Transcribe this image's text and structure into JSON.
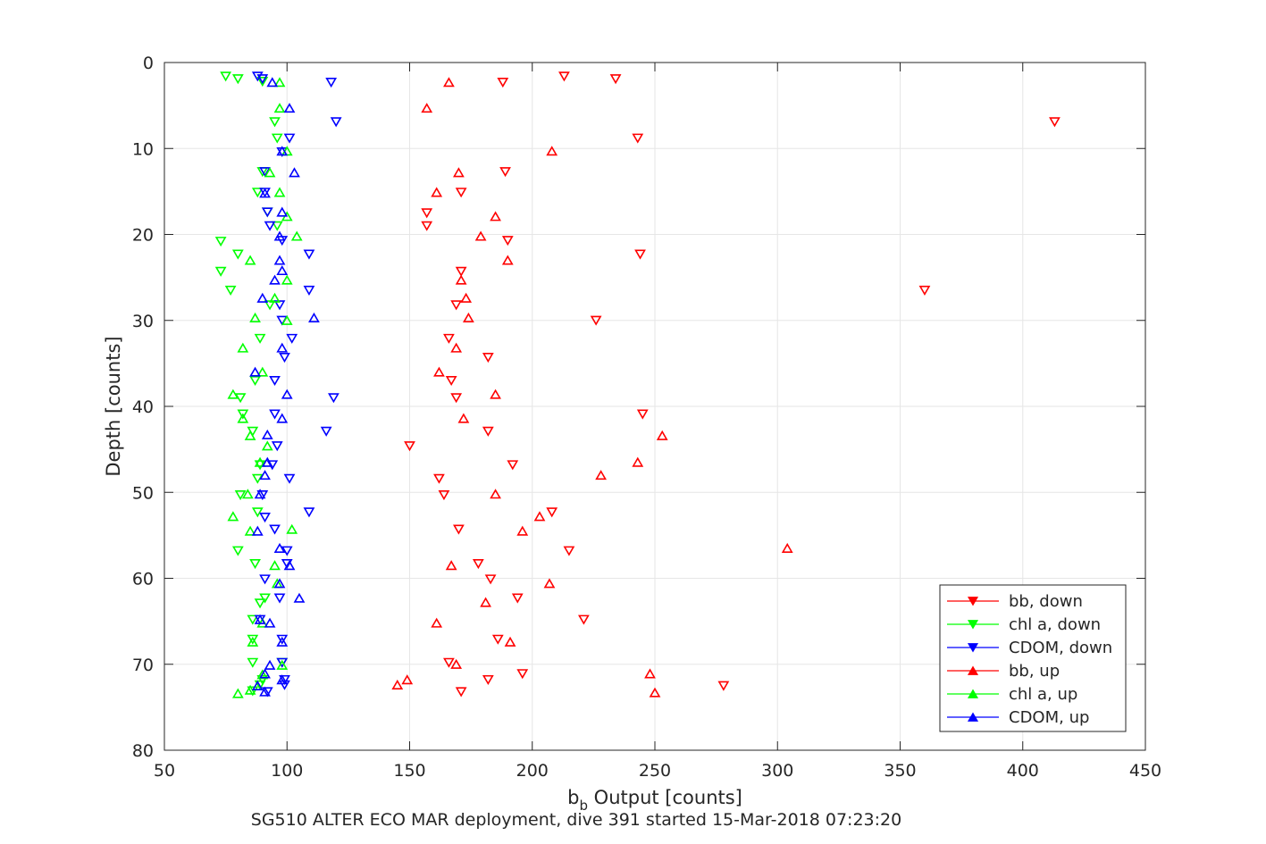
{
  "chart_data": {
    "type": "scatter",
    "xlabel_main": "b",
    "xlabel_sub": "b",
    "xlabel_rest": " Output [counts]",
    "ylabel": "Depth [counts]",
    "caption": "SG510 ALTER ECO MAR deployment, dive 391 started 15-Mar-2018 07:23:20",
    "xlim": [
      50,
      450
    ],
    "ylim": [
      0,
      80
    ],
    "y_reversed": true,
    "grid": true,
    "legend_position": "bottom-right",
    "x_ticks": [
      50,
      100,
      150,
      200,
      250,
      300,
      350,
      400,
      450
    ],
    "y_ticks": [
      0,
      10,
      20,
      30,
      40,
      50,
      60,
      70,
      80
    ],
    "series": [
      {
        "name": "bb, down",
        "color": "#ff0000",
        "marker": "triangle-down",
        "points": [
          [
            213,
            1.6
          ],
          [
            234,
            1.9
          ],
          [
            188,
            2.3
          ],
          [
            413,
            6.9
          ],
          [
            243,
            8.8
          ],
          [
            189,
            12.7
          ],
          [
            171,
            15.1
          ],
          [
            157,
            17.5
          ],
          [
            157,
            19.0
          ],
          [
            190,
            20.7
          ],
          [
            244,
            22.3
          ],
          [
            171,
            24.3
          ],
          [
            360,
            26.5
          ],
          [
            169,
            28.2
          ],
          [
            226,
            30.0
          ],
          [
            166,
            32.1
          ],
          [
            182,
            34.3
          ],
          [
            167,
            37.0
          ],
          [
            169,
            39.0
          ],
          [
            245,
            40.9
          ],
          [
            182,
            42.9
          ],
          [
            150,
            44.6
          ],
          [
            192,
            46.8
          ],
          [
            162,
            48.4
          ],
          [
            164,
            50.3
          ],
          [
            208,
            52.3
          ],
          [
            170,
            54.3
          ],
          [
            215,
            56.8
          ],
          [
            178,
            58.3
          ],
          [
            183,
            60.1
          ],
          [
            194,
            62.3
          ],
          [
            221,
            64.8
          ],
          [
            186,
            67.1
          ],
          [
            166,
            69.8
          ],
          [
            196,
            71.1
          ],
          [
            182,
            71.8
          ],
          [
            278,
            72.5
          ],
          [
            171,
            73.2
          ]
        ]
      },
      {
        "name": "chl a, down",
        "color": "#00ff00",
        "marker": "triangle-down",
        "points": [
          [
            75,
            1.6
          ],
          [
            80,
            1.9
          ],
          [
            90,
            2.2
          ],
          [
            95,
            6.9
          ],
          [
            96,
            8.8
          ],
          [
            90,
            12.7
          ],
          [
            88,
            15.1
          ],
          [
            92,
            17.4
          ],
          [
            96,
            19.0
          ],
          [
            73,
            20.8
          ],
          [
            80,
            22.3
          ],
          [
            73,
            24.3
          ],
          [
            77,
            26.5
          ],
          [
            93,
            28.2
          ],
          [
            89,
            32.1
          ],
          [
            87,
            37.0
          ],
          [
            81,
            39.0
          ],
          [
            82,
            40.9
          ],
          [
            86,
            42.9
          ],
          [
            89,
            46.8
          ],
          [
            88,
            48.4
          ],
          [
            81,
            50.3
          ],
          [
            88,
            52.3
          ],
          [
            80,
            56.8
          ],
          [
            87,
            58.3
          ],
          [
            91,
            62.3
          ],
          [
            89,
            62.9
          ],
          [
            86,
            64.8
          ],
          [
            86,
            67.1
          ],
          [
            86,
            69.8
          ],
          [
            98,
            69.8
          ],
          [
            90,
            71.8
          ],
          [
            89,
            72.4
          ],
          [
            86,
            73.1
          ]
        ]
      },
      {
        "name": "CDOM, down",
        "color": "#0000ff",
        "marker": "triangle-down",
        "points": [
          [
            88,
            1.6
          ],
          [
            90,
            1.9
          ],
          [
            118,
            2.3
          ],
          [
            120,
            6.9
          ],
          [
            101,
            8.8
          ],
          [
            98,
            10.4
          ],
          [
            91,
            12.7
          ],
          [
            91,
            15.1
          ],
          [
            92,
            17.4
          ],
          [
            93,
            19.0
          ],
          [
            98,
            20.7
          ],
          [
            109,
            22.3
          ],
          [
            109,
            26.5
          ],
          [
            97,
            28.2
          ],
          [
            98,
            30.0
          ],
          [
            102,
            32.1
          ],
          [
            99,
            34.3
          ],
          [
            95,
            37.0
          ],
          [
            119,
            39.0
          ],
          [
            95,
            40.9
          ],
          [
            116,
            42.9
          ],
          [
            96,
            44.6
          ],
          [
            94,
            46.8
          ],
          [
            101,
            48.4
          ],
          [
            90,
            50.3
          ],
          [
            109,
            52.3
          ],
          [
            91,
            52.9
          ],
          [
            95,
            54.3
          ],
          [
            100,
            56.8
          ],
          [
            100,
            58.3
          ],
          [
            91,
            60.1
          ],
          [
            97,
            62.3
          ],
          [
            89,
            64.8
          ],
          [
            98,
            67.1
          ],
          [
            98,
            69.8
          ],
          [
            99,
            71.8
          ],
          [
            99,
            72.4
          ],
          [
            92,
            73.2
          ]
        ]
      },
      {
        "name": "bb, up",
        "color": "#ff0000",
        "marker": "triangle-up",
        "points": [
          [
            166,
            2.3
          ],
          [
            157,
            5.3
          ],
          [
            208,
            10.3
          ],
          [
            170,
            12.8
          ],
          [
            161,
            15.1
          ],
          [
            185,
            17.9
          ],
          [
            179,
            20.2
          ],
          [
            190,
            23.0
          ],
          [
            171,
            25.3
          ],
          [
            173,
            27.4
          ],
          [
            174,
            29.7
          ],
          [
            169,
            33.2
          ],
          [
            162,
            36.0
          ],
          [
            185,
            38.6
          ],
          [
            172,
            41.4
          ],
          [
            253,
            43.4
          ],
          [
            243,
            46.5
          ],
          [
            228,
            48.0
          ],
          [
            185,
            50.2
          ],
          [
            203,
            52.8
          ],
          [
            196,
            54.5
          ],
          [
            304,
            56.5
          ],
          [
            167,
            58.5
          ],
          [
            207,
            60.6
          ],
          [
            181,
            62.8
          ],
          [
            161,
            65.2
          ],
          [
            191,
            67.4
          ],
          [
            169,
            70.0
          ],
          [
            248,
            71.1
          ],
          [
            149,
            71.8
          ],
          [
            145,
            72.4
          ],
          [
            250,
            73.3
          ]
        ]
      },
      {
        "name": "chl a, up",
        "color": "#00ff00",
        "marker": "triangle-up",
        "points": [
          [
            97,
            2.3
          ],
          [
            97,
            5.3
          ],
          [
            100,
            10.3
          ],
          [
            93,
            12.8
          ],
          [
            97,
            15.1
          ],
          [
            100,
            17.9
          ],
          [
            104,
            20.2
          ],
          [
            85,
            23.0
          ],
          [
            100,
            25.3
          ],
          [
            95,
            27.4
          ],
          [
            87,
            29.7
          ],
          [
            100,
            30.0
          ],
          [
            82,
            33.2
          ],
          [
            90,
            36.0
          ],
          [
            78,
            38.6
          ],
          [
            82,
            41.4
          ],
          [
            85,
            43.4
          ],
          [
            92,
            44.6
          ],
          [
            89,
            46.5
          ],
          [
            84,
            50.2
          ],
          [
            78,
            52.8
          ],
          [
            102,
            54.3
          ],
          [
            85,
            54.5
          ],
          [
            95,
            58.5
          ],
          [
            96,
            60.6
          ],
          [
            90,
            65.2
          ],
          [
            86,
            67.4
          ],
          [
            98,
            70.1
          ],
          [
            90,
            71.2
          ],
          [
            85,
            73.0
          ],
          [
            80,
            73.4
          ]
        ]
      },
      {
        "name": "CDOM, up",
        "color": "#0000ff",
        "marker": "triangle-up",
        "points": [
          [
            94,
            2.3
          ],
          [
            101,
            5.3
          ],
          [
            98,
            10.3
          ],
          [
            103,
            12.8
          ],
          [
            91,
            15.2
          ],
          [
            98,
            17.4
          ],
          [
            97,
            20.2
          ],
          [
            97,
            23.0
          ],
          [
            98,
            24.2
          ],
          [
            95,
            25.3
          ],
          [
            90,
            27.4
          ],
          [
            111,
            29.7
          ],
          [
            98,
            33.2
          ],
          [
            87,
            36.0
          ],
          [
            100,
            38.6
          ],
          [
            98,
            41.4
          ],
          [
            92,
            43.3
          ],
          [
            92,
            46.5
          ],
          [
            91,
            48.0
          ],
          [
            89,
            50.2
          ],
          [
            88,
            54.5
          ],
          [
            97,
            56.5
          ],
          [
            101,
            58.5
          ],
          [
            97,
            60.6
          ],
          [
            105,
            62.3
          ],
          [
            89,
            64.8
          ],
          [
            93,
            65.2
          ],
          [
            98,
            67.4
          ],
          [
            93,
            70.1
          ],
          [
            91,
            71.1
          ],
          [
            98,
            71.8
          ],
          [
            88,
            72.5
          ],
          [
            91,
            73.2
          ]
        ]
      }
    ]
  }
}
